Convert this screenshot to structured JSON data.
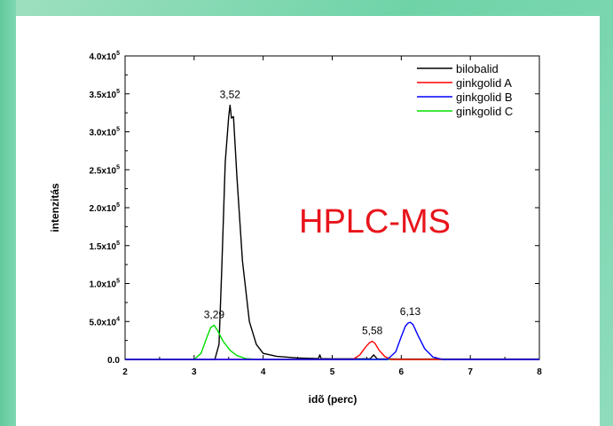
{
  "chart_data": {
    "type": "line",
    "xlabel": "idõ (perc)",
    "ylabel": "intenzitás",
    "xlim": [
      2,
      8
    ],
    "ylim": [
      0,
      400000
    ],
    "x_ticks": [
      "2",
      "3",
      "4",
      "5",
      "6",
      "7",
      "8"
    ],
    "y_ticks": [
      {
        "value": 0,
        "label": "0.0"
      },
      {
        "value": 50000,
        "label": "5.0x10",
        "exp": "4"
      },
      {
        "value": 100000,
        "label": "1.0x10",
        "exp": "5"
      },
      {
        "value": 150000,
        "label": "1.5x10",
        "exp": "5"
      },
      {
        "value": 200000,
        "label": "2.0x10",
        "exp": "5"
      },
      {
        "value": 250000,
        "label": "2.5x10",
        "exp": "5"
      },
      {
        "value": 300000,
        "label": "3.0x10",
        "exp": "5"
      },
      {
        "value": 350000,
        "label": "3.5x10",
        "exp": "5"
      },
      {
        "value": 400000,
        "label": "4.0x10",
        "exp": "5"
      }
    ],
    "legend_position": "top-right",
    "series": [
      {
        "name": "bilobalid",
        "color": "#000000",
        "x": [
          2.0,
          3.3,
          3.36,
          3.4,
          3.45,
          3.5,
          3.52,
          3.54,
          3.57,
          3.62,
          3.7,
          3.8,
          3.9,
          4.0,
          4.2,
          4.5,
          4.8,
          4.82,
          4.84,
          5.0,
          5.55,
          5.6,
          5.65,
          6.0,
          8.0
        ],
        "y": [
          0,
          0,
          20000,
          120000,
          260000,
          320000,
          335000,
          318000,
          320000,
          240000,
          130000,
          50000,
          20000,
          8000,
          4000,
          2000,
          1000,
          6000,
          1000,
          800,
          800,
          6000,
          800,
          500,
          500
        ]
      },
      {
        "name": "ginkgolid A",
        "color": "#ff0000",
        "x": [
          2.0,
          5.3,
          5.4,
          5.48,
          5.54,
          5.58,
          5.62,
          5.68,
          5.76,
          5.85,
          8.0
        ],
        "y": [
          0,
          0,
          6000,
          16000,
          22000,
          24000,
          21000,
          12000,
          4000,
          0,
          0
        ]
      },
      {
        "name": "ginkgolid B",
        "color": "#0000ff",
        "x": [
          2.0,
          5.8,
          5.92,
          6.0,
          6.06,
          6.1,
          6.13,
          6.17,
          6.24,
          6.34,
          6.46,
          6.6,
          8.0
        ],
        "y": [
          0,
          0,
          10000,
          30000,
          44000,
          48000,
          49000,
          46000,
          32000,
          14000,
          3000,
          0,
          0
        ]
      },
      {
        "name": "ginkgolid C",
        "color": "#00dd00",
        "x": [
          2.0,
          3.0,
          3.1,
          3.18,
          3.24,
          3.29,
          3.34,
          3.42,
          3.52,
          3.62,
          3.75,
          3.9,
          8.0
        ],
        "y": [
          0,
          0,
          8000,
          28000,
          42000,
          45000,
          38000,
          24000,
          12000,
          5000,
          1000,
          0,
          0
        ]
      }
    ],
    "annotations": [
      {
        "text": "3,52",
        "x": 3.52,
        "y": 335000
      },
      {
        "text": "3,29",
        "x": 3.29,
        "y": 45000
      },
      {
        "text": "5,58",
        "x": 5.58,
        "y": 24000
      },
      {
        "text": "6,13",
        "x": 6.13,
        "y": 49000
      }
    ]
  },
  "overlay_text": "HPLC-MS"
}
